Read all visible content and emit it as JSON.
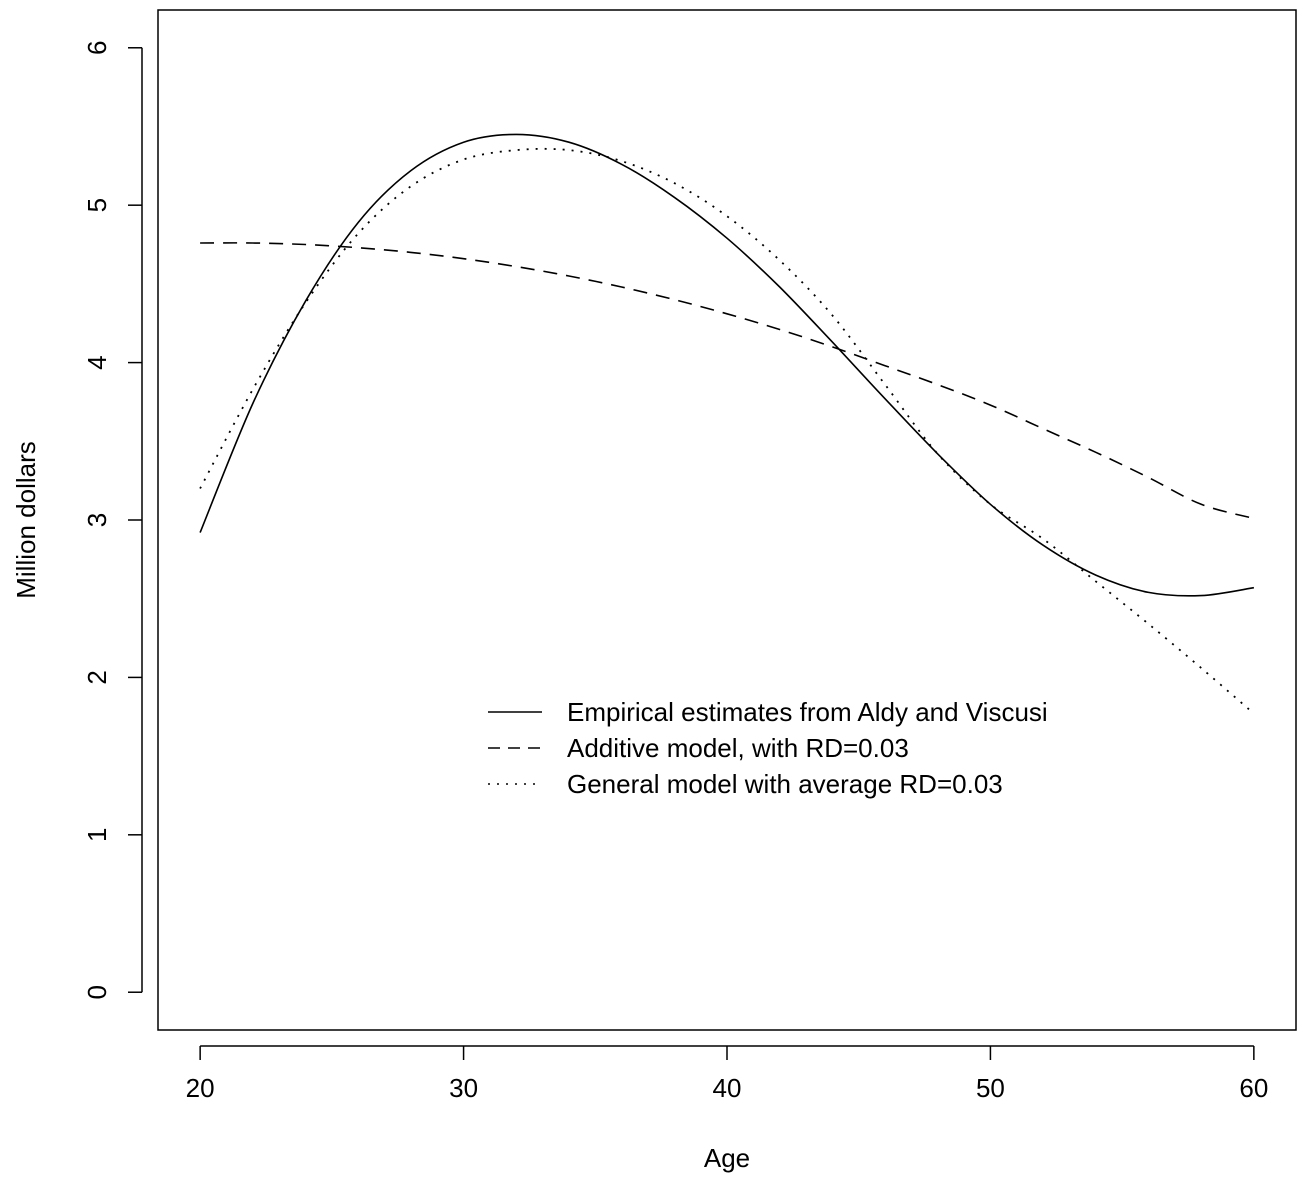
{
  "chart_data": {
    "type": "line",
    "title": "",
    "xlabel": "Age",
    "ylabel": "Million  dollars",
    "xlim": [
      18.4,
      61.6
    ],
    "ylim": [
      -0.24,
      6.24
    ],
    "xticks": [
      20,
      30,
      40,
      50,
      60
    ],
    "yticks": [
      0,
      1,
      2,
      3,
      4,
      5,
      6
    ],
    "grid": false,
    "legend_position": "center-right",
    "series": [
      {
        "name": "Empirical estimates from Aldy and Viscusi",
        "line_style": "solid",
        "x": [
          20,
          22,
          24,
          26,
          28,
          30,
          32,
          34,
          36,
          38,
          40,
          42,
          44,
          46,
          48,
          50,
          52,
          54,
          56,
          58,
          60
        ],
        "y": [
          2.92,
          3.74,
          4.39,
          4.89,
          5.22,
          5.4,
          5.45,
          5.4,
          5.26,
          5.05,
          4.79,
          4.48,
          4.13,
          3.77,
          3.42,
          3.1,
          2.84,
          2.65,
          2.54,
          2.52,
          2.57
        ]
      },
      {
        "name": "Additive model, with RD=0.03",
        "line_style": "dashed",
        "x": [
          20,
          22,
          24,
          26,
          28,
          30,
          32,
          34,
          36,
          38,
          40,
          42,
          44,
          46,
          48,
          50,
          52,
          54,
          56,
          58,
          60
        ],
        "y": [
          4.76,
          4.76,
          4.75,
          4.73,
          4.7,
          4.66,
          4.61,
          4.55,
          4.48,
          4.4,
          4.31,
          4.21,
          4.1,
          3.98,
          3.86,
          3.73,
          3.58,
          3.43,
          3.27,
          3.1,
          3.01
        ]
      },
      {
        "name": "General model with average RD=0.03",
        "line_style": "dotted",
        "x": [
          20,
          22,
          24,
          26,
          28,
          30,
          32,
          34,
          36,
          38,
          40,
          42,
          44,
          46,
          48,
          50,
          52,
          54,
          56,
          58,
          60
        ],
        "y": [
          3.2,
          3.83,
          4.38,
          4.82,
          5.12,
          5.29,
          5.35,
          5.35,
          5.28,
          5.14,
          4.93,
          4.65,
          4.3,
          3.86,
          3.42,
          3.1,
          2.88,
          2.61,
          2.34,
          2.06,
          1.77
        ]
      }
    ]
  }
}
